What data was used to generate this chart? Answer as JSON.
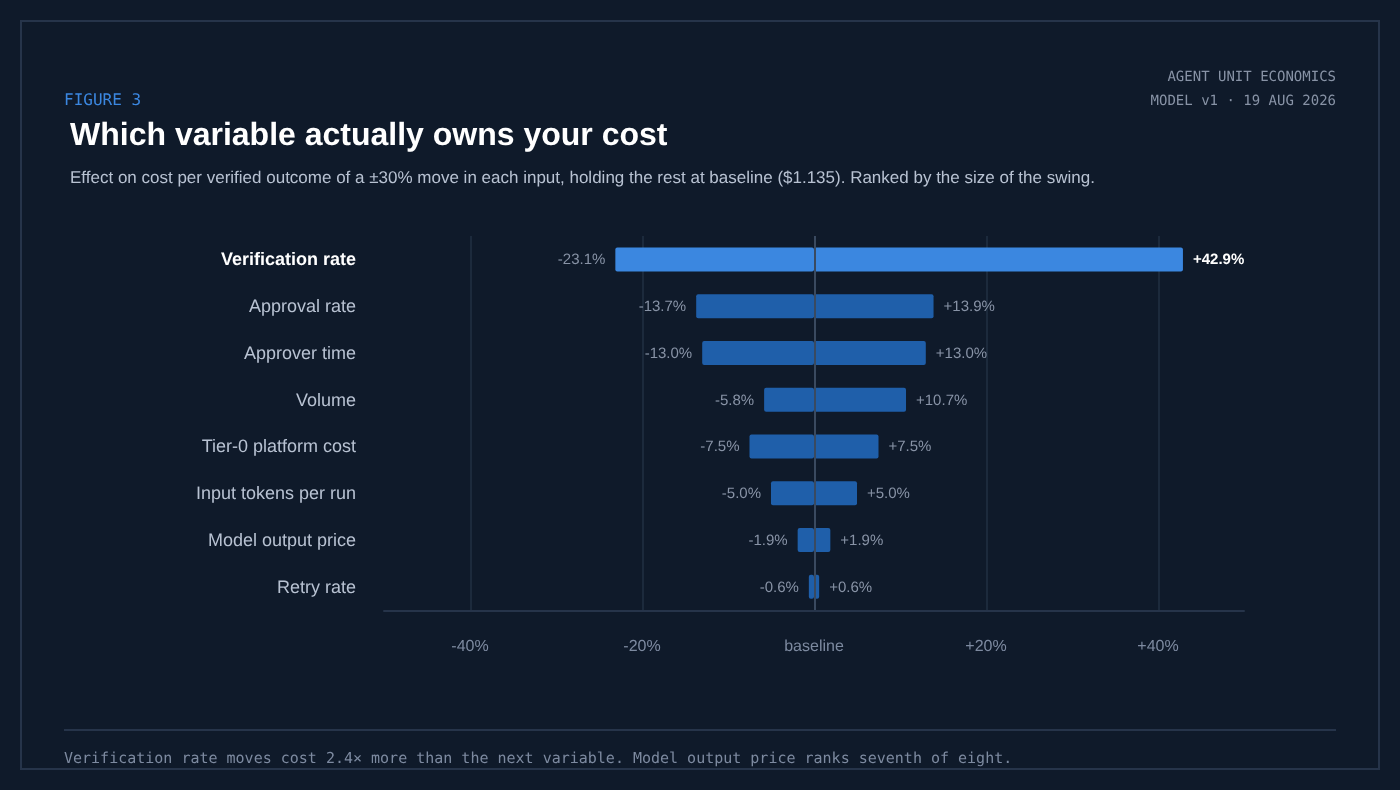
{
  "chart_data": {
    "type": "bar",
    "orientation": "horizontal",
    "stacked": true,
    "title": "Which variable actually owns your cost",
    "subtitle": "Effect on cost per verified outcome of a ±30% move in each input, holding the rest at baseline ($1.135). Ranked by the size of the swing.",
    "annotations": [
      "FIGURE 3",
      "AGENT UNIT ECONOMICS",
      "MODEL v1 · 19 AUG 2026",
      "Verification rate moves cost 2.4× more than the next variable. Model output price ranks seventh of eight."
    ],
    "categories": [
      "Verification rate",
      "Approval rate",
      "Approver time",
      "Volume",
      "Tier-0 platform cost",
      "Input tokens per run",
      "Model output price",
      "Retry rate"
    ],
    "series": [
      {
        "colors": [
          "#3b87e0",
          "#1f5faa",
          "#1f5faa",
          "#1f5faa",
          "#1f5faa",
          "#1f5faa",
          "#1f5faa",
          "#1f5faa"
        ],
        "values": [
          -23.1,
          -13.7,
          -13.0,
          -5.8,
          -7.5,
          -5.0,
          -1.9,
          -0.6
        ],
        "value_labels": [
          "-23.1%",
          "-13.7%",
          "-13.0%",
          "-5.8%",
          "-7.5%",
          "-5.0%",
          "-1.9%",
          "-0.6%"
        ]
      },
      {
        "colors": [
          "#3b87e0",
          "#1f5faa",
          "#1f5faa",
          "#1f5faa",
          "#1f5faa",
          "#1f5faa",
          "#1f5faa",
          "#1f5faa"
        ],
        "values": [
          42.9,
          13.9,
          13.0,
          10.7,
          7.5,
          5.0,
          1.9,
          0.6
        ],
        "value_labels": [
          "+42.9%",
          "+13.9%",
          "+13.0%",
          "+10.7%",
          "+7.5%",
          "+5.0%",
          "+1.9%",
          "+0.6%"
        ]
      }
    ],
    "xlim": [
      -50,
      50
    ],
    "xticks": [
      {
        "value": -40,
        "label": "-40%"
      },
      {
        "value": -20,
        "label": "-20%"
      },
      {
        "value": 0,
        "label": "baseline"
      },
      {
        "value": 20,
        "label": "+20%"
      },
      {
        "value": 40,
        "label": "+40%"
      }
    ],
    "ref_lines": [
      {
        "axis": "x",
        "value": 0,
        "color": "#3a4a60"
      }
    ],
    "grid": "x"
  }
}
